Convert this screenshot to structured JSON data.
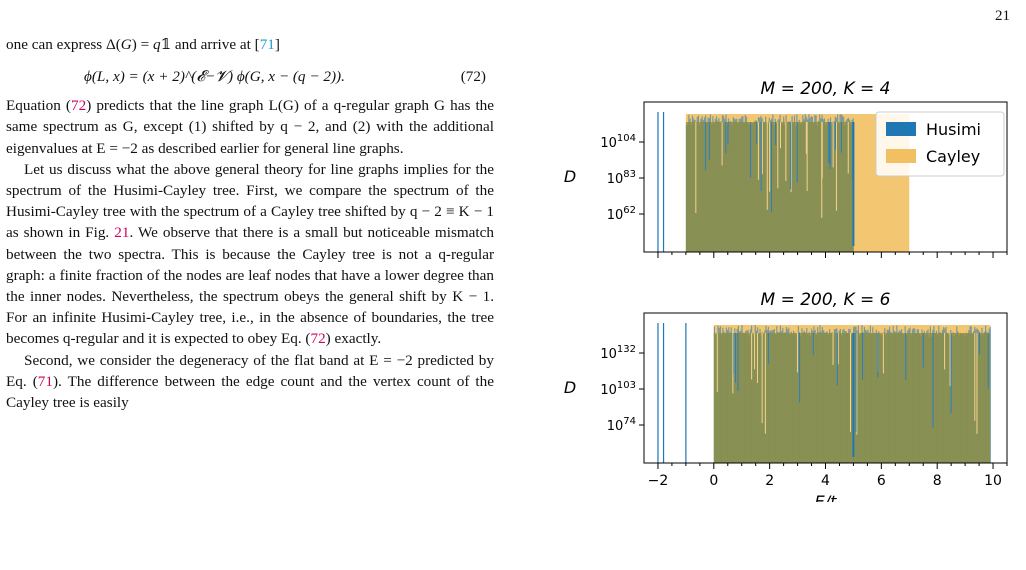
{
  "page": {
    "number": "21"
  },
  "text": {
    "p1_a": "one can express Δ(",
    "p1_G": "G",
    "p1_b": ") = ",
    "p1_q": "q",
    "p1_c": "𝟙 and arrive at [",
    "p1_cite": "71",
    "p1_d": "]",
    "eq72_body": "ϕ(L, x) = (x + 2)^(𝓔−𝓥) ϕ(G, x − (q − 2)).",
    "eq72_number": "(72)",
    "p2_a": "Equation (",
    "p2_ref": "72",
    "p2_b": ") predicts that the line graph L(G) of a q-regular graph G has the same spectrum as G, except (1) shifted by q − 2, and (2) with the additional eigenvalues at E = −2 as described earlier for general line graphs.",
    "p3_a": "Let us discuss what the above general theory for line graphs implies for the spectrum of the Husimi-Cayley tree. First, we compare the spectrum of the Husimi-Cayley tree with the spectrum of a Cayley tree shifted by q − 2 ≡ K − 1 as shown in Fig. ",
    "p3_ref1": "21",
    "p3_b": ". We observe that there is a small but noticeable mismatch between the two spectra. This is because the Cayley tree is not a q-regular graph: a finite fraction of the nodes are leaf nodes that have a lower degree than the inner nodes. Nevertheless, the spectrum obeys the general shift by K − 1. For an infinite Husimi-Cayley tree, i.e., in the absence of boundaries, the tree becomes q-regular and it is expected to obey Eq. (",
    "p3_ref2": "72",
    "p3_c": ") exactly.",
    "p4_a": "Second, we consider the degeneracy of the flat band at E = −2 predicted by Eq. (",
    "p4_ref": "71",
    "p4_b": "). The difference between the edge count and the vertex count of the Cayley tree is easily"
  },
  "chart_data": [
    {
      "type": "bar",
      "title": "M = 200, K = 4",
      "xlabel": "",
      "ylabel": "D",
      "y_scale": "log",
      "ytick_labels": [
        "10^104",
        "10^83",
        "10^62"
      ],
      "xlim": [
        -2.5,
        10.5
      ],
      "legend": {
        "placement": "top-right",
        "entries": [
          "Husimi",
          "Cayley"
        ]
      },
      "series": [
        {
          "name": "Husimi",
          "color": "#1f77b4",
          "isolated_lines_E": [
            -2.0,
            -1.8
          ],
          "band_E": [
            -1.0,
            5.0
          ],
          "band_log10_D_max": 112
        },
        {
          "name": "Cayley",
          "color": "#f2c063",
          "band_E": [
            -1.0,
            7.0
          ],
          "band_log10_D_max": 112
        }
      ]
    },
    {
      "type": "bar",
      "title": "M = 200, K = 6",
      "xlabel": "E/t",
      "ylabel": "D",
      "y_scale": "log",
      "ytick_labels": [
        "10^132",
        "10^103",
        "10^74"
      ],
      "xtick_labels": [
        "−2",
        "0",
        "2",
        "4",
        "6",
        "8",
        "10"
      ],
      "xlim": [
        -2.5,
        10.5
      ],
      "series": [
        {
          "name": "Husimi",
          "color": "#1f77b4",
          "isolated_lines_E": [
            -2.0,
            -1.8,
            -1.0
          ],
          "band_E": [
            0.0,
            9.9
          ]
        },
        {
          "name": "Cayley",
          "color": "#f2c063",
          "band_E": [
            0.0,
            9.9
          ]
        }
      ]
    }
  ]
}
